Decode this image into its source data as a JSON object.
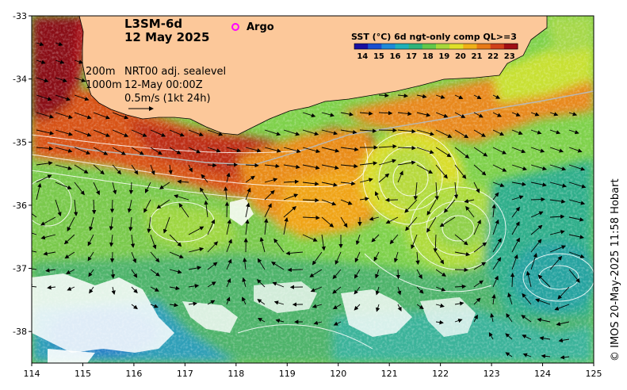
{
  "header": {
    "product": "L3SM-6d",
    "date": "12 May 2025"
  },
  "legend_argo": {
    "label": "Argo",
    "marker_color": "#ff00ff"
  },
  "overlay_info": {
    "depth_200": "200m",
    "depth_1000": "1000m",
    "sealevel": "NRT00 adj. sealevel",
    "valid_time": "12-May 00:00Z",
    "scale_arrow": "0.5m/s (1kt 24h)"
  },
  "colorbar": {
    "title": "SST (°C) 6d ngt-only comp QL>=3",
    "ticks": [
      "14",
      "15",
      "16",
      "17",
      "18",
      "19",
      "20",
      "21",
      "22",
      "23"
    ],
    "min": 13.5,
    "max": 23.5
  },
  "axes": {
    "x_ticks": [
      "114",
      "115",
      "116",
      "117",
      "118",
      "119",
      "120",
      "121",
      "122",
      "123",
      "124",
      "125"
    ],
    "y_ticks": [
      "-33",
      "-34",
      "-35",
      "-36",
      "-37",
      "-38"
    ],
    "lon_range": [
      114,
      125
    ],
    "lat_range": [
      -38.5,
      -33
    ]
  },
  "credit": "© IMOS 20-May-2025 11:58 Hobart",
  "colors": {
    "land": "#fcc89a",
    "cloud": "#ffffff",
    "contour": "#ffffff",
    "arrow": "#000000",
    "shelf": "#b8b8b8"
  }
}
